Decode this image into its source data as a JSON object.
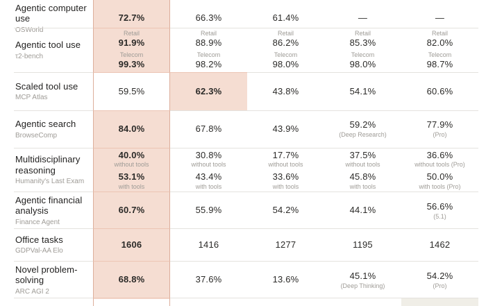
{
  "colors": {
    "accent_pink_fill": "#f5ddd2",
    "accent_pink_border": "#dcae9b",
    "accent_gray_fill": "#f0eee7",
    "row_divider": "#e4e2de"
  },
  "table": {
    "rows": [
      {
        "label": "Agentic computer use",
        "benchmark": "OSWorld",
        "cells": [
          {
            "highlight": "pink",
            "bold": true,
            "entries": [
              {
                "value": "72.7%"
              }
            ]
          },
          {
            "entries": [
              {
                "value": "66.3%"
              }
            ]
          },
          {
            "entries": [
              {
                "value": "61.4%"
              }
            ]
          },
          {
            "entries": [
              {
                "value": "—"
              }
            ]
          },
          {
            "entries": [
              {
                "value": "—"
              }
            ]
          }
        ]
      },
      {
        "label": "Agentic tool use",
        "benchmark": "τ2-bench",
        "cells": [
          {
            "highlight": "pink",
            "bold": true,
            "entries": [
              {
                "above": "Retail",
                "value": "91.9%"
              },
              {
                "above": "Telecom",
                "value": "99.3%"
              }
            ]
          },
          {
            "entries": [
              {
                "above": "Retail",
                "value": "88.9%"
              },
              {
                "above": "Telecom",
                "value": "98.2%"
              }
            ]
          },
          {
            "entries": [
              {
                "above": "Retail",
                "value": "86.2%"
              },
              {
                "above": "Telecom",
                "value": "98.0%"
              }
            ]
          },
          {
            "entries": [
              {
                "above": "Retail",
                "value": "85.3%"
              },
              {
                "above": "Telecom",
                "value": "98.0%"
              }
            ]
          },
          {
            "entries": [
              {
                "above": "Retail",
                "value": "82.0%"
              },
              {
                "above": "Telecom",
                "value": "98.7%"
              }
            ]
          }
        ]
      },
      {
        "label": "Scaled tool use",
        "benchmark": "MCP Atlas",
        "cells": [
          {
            "entries": [
              {
                "value": "59.5%"
              }
            ]
          },
          {
            "highlight": "pink",
            "bold": true,
            "entries": [
              {
                "value": "62.3%"
              }
            ]
          },
          {
            "entries": [
              {
                "value": "43.8%"
              }
            ]
          },
          {
            "entries": [
              {
                "value": "54.1%"
              }
            ]
          },
          {
            "entries": [
              {
                "value": "60.6%"
              }
            ]
          }
        ]
      },
      {
        "label": "Agentic search",
        "benchmark": "BrowseComp",
        "cells": [
          {
            "highlight": "pink",
            "bold": true,
            "entries": [
              {
                "value": "84.0%"
              }
            ]
          },
          {
            "entries": [
              {
                "value": "67.8%"
              }
            ]
          },
          {
            "entries": [
              {
                "value": "43.9%"
              }
            ]
          },
          {
            "entries": [
              {
                "value": "59.2%",
                "below": "(Deep Research)"
              }
            ]
          },
          {
            "entries": [
              {
                "value": "77.9%",
                "below": "(Pro)"
              }
            ]
          }
        ]
      },
      {
        "label": "Multidisciplinary reasoning",
        "benchmark": "Humanity's Last Exam",
        "cells": [
          {
            "highlight": "pink",
            "bold": true,
            "entries": [
              {
                "value": "40.0%",
                "below": "without tools"
              },
              {
                "value": "53.1%",
                "below": "with tools"
              }
            ]
          },
          {
            "entries": [
              {
                "value": "30.8%",
                "below": "without tools"
              },
              {
                "value": "43.4%",
                "below": "with tools"
              }
            ]
          },
          {
            "entries": [
              {
                "value": "17.7%",
                "below": "without tools"
              },
              {
                "value": "33.6%",
                "below": "with tools"
              }
            ]
          },
          {
            "entries": [
              {
                "value": "37.5%",
                "below": "without tools"
              },
              {
                "value": "45.8%",
                "below": "with tools"
              }
            ]
          },
          {
            "entries": [
              {
                "value": "36.6%",
                "below": "without tools (Pro)"
              },
              {
                "value": "50.0%",
                "below": "with tools (Pro)"
              }
            ]
          }
        ]
      },
      {
        "label": "Agentic financial analysis",
        "benchmark": "Finance Agent",
        "cells": [
          {
            "highlight": "pink",
            "bold": true,
            "entries": [
              {
                "value": "60.7%"
              }
            ]
          },
          {
            "entries": [
              {
                "value": "55.9%"
              }
            ]
          },
          {
            "entries": [
              {
                "value": "54.2%"
              }
            ]
          },
          {
            "entries": [
              {
                "value": "44.1%"
              }
            ]
          },
          {
            "entries": [
              {
                "value": "56.6%",
                "below": "(5.1)"
              }
            ]
          }
        ]
      },
      {
        "label": "Office tasks",
        "benchmark": "GDPVal-AA Elo",
        "cells": [
          {
            "highlight": "pink",
            "bold": true,
            "entries": [
              {
                "value": "1606"
              }
            ]
          },
          {
            "entries": [
              {
                "value": "1416"
              }
            ]
          },
          {
            "entries": [
              {
                "value": "1277"
              }
            ]
          },
          {
            "entries": [
              {
                "value": "1195"
              }
            ]
          },
          {
            "entries": [
              {
                "value": "1462"
              }
            ]
          }
        ]
      },
      {
        "label": "Novel problem-solving",
        "benchmark": "ARC AGI 2",
        "cells": [
          {
            "highlight": "pink",
            "bold": true,
            "entries": [
              {
                "value": "68.8%"
              }
            ]
          },
          {
            "entries": [
              {
                "value": "37.6%"
              }
            ]
          },
          {
            "entries": [
              {
                "value": "13.6%"
              }
            ]
          },
          {
            "entries": [
              {
                "value": "45.1%",
                "below": "(Deep Thinking)"
              }
            ]
          },
          {
            "entries": [
              {
                "value": "54.2%",
                "below": "(Pro)"
              }
            ]
          }
        ]
      },
      {
        "label": "",
        "benchmark": "",
        "cells": [
          {
            "entries": []
          },
          {
            "entries": []
          },
          {
            "entries": []
          },
          {
            "entries": []
          },
          {
            "highlight": "gray",
            "entries": []
          }
        ]
      }
    ]
  },
  "chart_data": {
    "type": "table",
    "title": "",
    "row_labels": [
      "Agentic computer use (OSWorld)",
      "Agentic tool use (τ2-bench)",
      "Scaled tool use (MCP Atlas)",
      "Agentic search (BrowseComp)",
      "Multidisciplinary reasoning (Humanity's Last Exam)",
      "Agentic financial analysis (Finance Agent)",
      "Office tasks (GDPVal-AA Elo)",
      "Novel problem-solving (ARC AGI 2)"
    ],
    "series": [
      {
        "name": "column-1 (highlighted)",
        "values": [
          "72.7%",
          "Retail 91.9% / Telecom 99.3%",
          "59.5%",
          "84.0%",
          "40.0% without tools / 53.1% with tools",
          "60.7%",
          "1606",
          "68.8%"
        ]
      },
      {
        "name": "column-2",
        "values": [
          "66.3%",
          "Retail 88.9% / Telecom 98.2%",
          "62.3%",
          "67.8%",
          "30.8% without tools / 43.4% with tools",
          "55.9%",
          "1416",
          "37.6%"
        ]
      },
      {
        "name": "column-3",
        "values": [
          "61.4%",
          "Retail 86.2% / Telecom 98.0%",
          "43.8%",
          "43.9%",
          "17.7% without tools / 33.6% with tools",
          "54.2%",
          "1277",
          "13.6%"
        ]
      },
      {
        "name": "column-4",
        "values": [
          "—",
          "Retail 85.3% / Telecom 98.0%",
          "54.1%",
          "59.2% (Deep Research)",
          "37.5% without tools / 45.8% with tools",
          "44.1%",
          "1195",
          "45.1% (Deep Thinking)"
        ]
      },
      {
        "name": "column-5",
        "values": [
          "—",
          "Retail 82.0% / Telecom 98.7%",
          "60.6%",
          "77.9% (Pro)",
          "36.6% without tools (Pro) / 50.0% with tools (Pro)",
          "56.6% (5.1)",
          "1462",
          "54.2% (Pro)"
        ]
      }
    ]
  }
}
